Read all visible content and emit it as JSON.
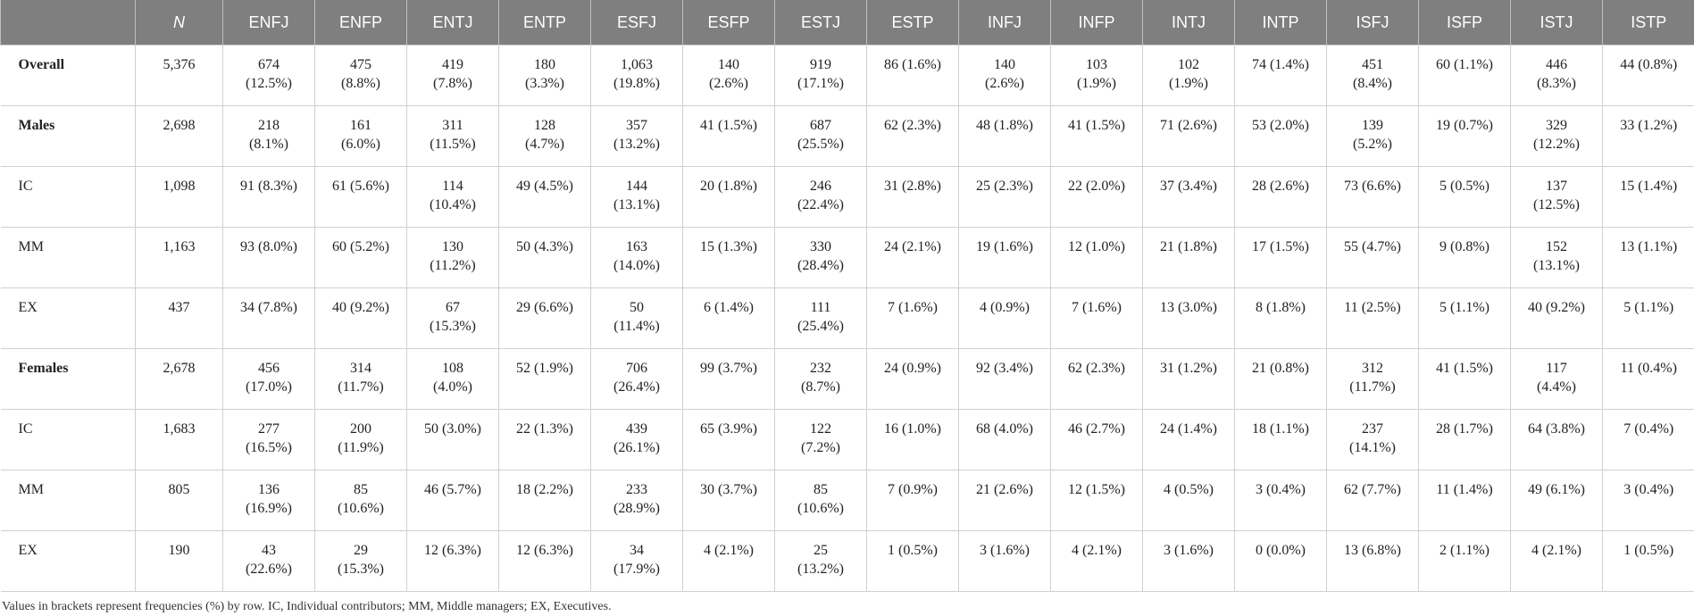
{
  "table": {
    "header": [
      "N",
      "ENFJ",
      "ENFP",
      "ENTJ",
      "ENTP",
      "ESFJ",
      "ESFP",
      "ESTJ",
      "ESTP",
      "INFJ",
      "INFP",
      "INTJ",
      "INTP",
      "ISFJ",
      "ISFP",
      "ISTJ",
      "ISTP"
    ],
    "rows": [
      [
        "Overall",
        "5,376",
        "674 (12.5%)",
        "475 (8.8%)",
        "419 (7.8%)",
        "180 (3.3%)",
        "1,063 (19.8%)",
        "140 (2.6%)",
        "919 (17.1%)",
        "86 (1.6%)",
        "140 (2.6%)",
        "103 (1.9%)",
        "102 (1.9%)",
        "74 (1.4%)",
        "451 (8.4%)",
        "60 (1.1%)",
        "446 (8.3%)",
        "44 (0.8%)"
      ],
      [
        "Males",
        "2,698",
        "218 (8.1%)",
        "161 (6.0%)",
        "311 (11.5%)",
        "128 (4.7%)",
        "357 (13.2%)",
        "41 (1.5%)",
        "687 (25.5%)",
        "62 (2.3%)",
        "48 (1.8%)",
        "41 (1.5%)",
        "71 (2.6%)",
        "53 (2.0%)",
        "139 (5.2%)",
        "19 (0.7%)",
        "329 (12.2%)",
        "33 (1.2%)"
      ],
      [
        "IC",
        "1,098",
        "91 (8.3%)",
        "61 (5.6%)",
        "114 (10.4%)",
        "49 (4.5%)",
        "144 (13.1%)",
        "20 (1.8%)",
        "246 (22.4%)",
        "31 (2.8%)",
        "25 (2.3%)",
        "22 (2.0%)",
        "37 (3.4%)",
        "28 (2.6%)",
        "73 (6.6%)",
        "5 (0.5%)",
        "137 (12.5%)",
        "15 (1.4%)"
      ],
      [
        "MM",
        "1,163",
        "93 (8.0%)",
        "60 (5.2%)",
        "130 (11.2%)",
        "50 (4.3%)",
        "163 (14.0%)",
        "15 (1.3%)",
        "330 (28.4%)",
        "24 (2.1%)",
        "19 (1.6%)",
        "12 (1.0%)",
        "21 (1.8%)",
        "17 (1.5%)",
        "55 (4.7%)",
        "9 (0.8%)",
        "152 (13.1%)",
        "13 (1.1%)"
      ],
      [
        "EX",
        "437",
        "34 (7.8%)",
        "40 (9.2%)",
        "67 (15.3%)",
        "29 (6.6%)",
        "50 (11.4%)",
        "6 (1.4%)",
        "111 (25.4%)",
        "7 (1.6%)",
        "4 (0.9%)",
        "7 (1.6%)",
        "13 (3.0%)",
        "8 (1.8%)",
        "11 (2.5%)",
        "5 (1.1%)",
        "40 (9.2%)",
        "5 (1.1%)"
      ],
      [
        "Females",
        "2,678",
        "456 (17.0%)",
        "314 (11.7%)",
        "108 (4.0%)",
        "52 (1.9%)",
        "706 (26.4%)",
        "99 (3.7%)",
        "232 (8.7%)",
        "24 (0.9%)",
        "92 (3.4%)",
        "62 (2.3%)",
        "31 (1.2%)",
        "21 (0.8%)",
        "312 (11.7%)",
        "41 (1.5%)",
        "117 (4.4%)",
        "11 (0.4%)"
      ],
      [
        "IC",
        "1,683",
        "277 (16.5%)",
        "200 (11.9%)",
        "50 (3.0%)",
        "22 (1.3%)",
        "439 (26.1%)",
        "65 (3.9%)",
        "122 (7.2%)",
        "16 (1.0%)",
        "68 (4.0%)",
        "46 (2.7%)",
        "24 (1.4%)",
        "18 (1.1%)",
        "237 (14.1%)",
        "28 (1.7%)",
        "64 (3.8%)",
        "7 (0.4%)"
      ],
      [
        "MM",
        "805",
        "136 (16.9%)",
        "85 (10.6%)",
        "46 (5.7%)",
        "18 (2.2%)",
        "233 (28.9%)",
        "30 (3.7%)",
        "85 (10.6%)",
        "7 (0.9%)",
        "21 (2.6%)",
        "12 (1.5%)",
        "4 (0.5%)",
        "3 (0.4%)",
        "62 (7.7%)",
        "11 (1.4%)",
        "49 (6.1%)",
        "3 (0.4%)"
      ],
      [
        "EX",
        "190",
        "43 (22.6%)",
        "29 (15.3%)",
        "12 (6.3%)",
        "12 (6.3%)",
        "34 (17.9%)",
        "4 (2.1%)",
        "25 (13.2%)",
        "1 (0.5%)",
        "3 (1.6%)",
        "4 (2.1%)",
        "3 (1.6%)",
        "0 (0.0%)",
        "13 (6.8%)",
        "2 (1.1%)",
        "4 (2.1%)",
        "1 (0.5%)"
      ]
    ]
  },
  "footnote": "Values in brackets represent frequencies (%) by row. IC, Individual contributors; MM, Middle managers; EX, Executives."
}
